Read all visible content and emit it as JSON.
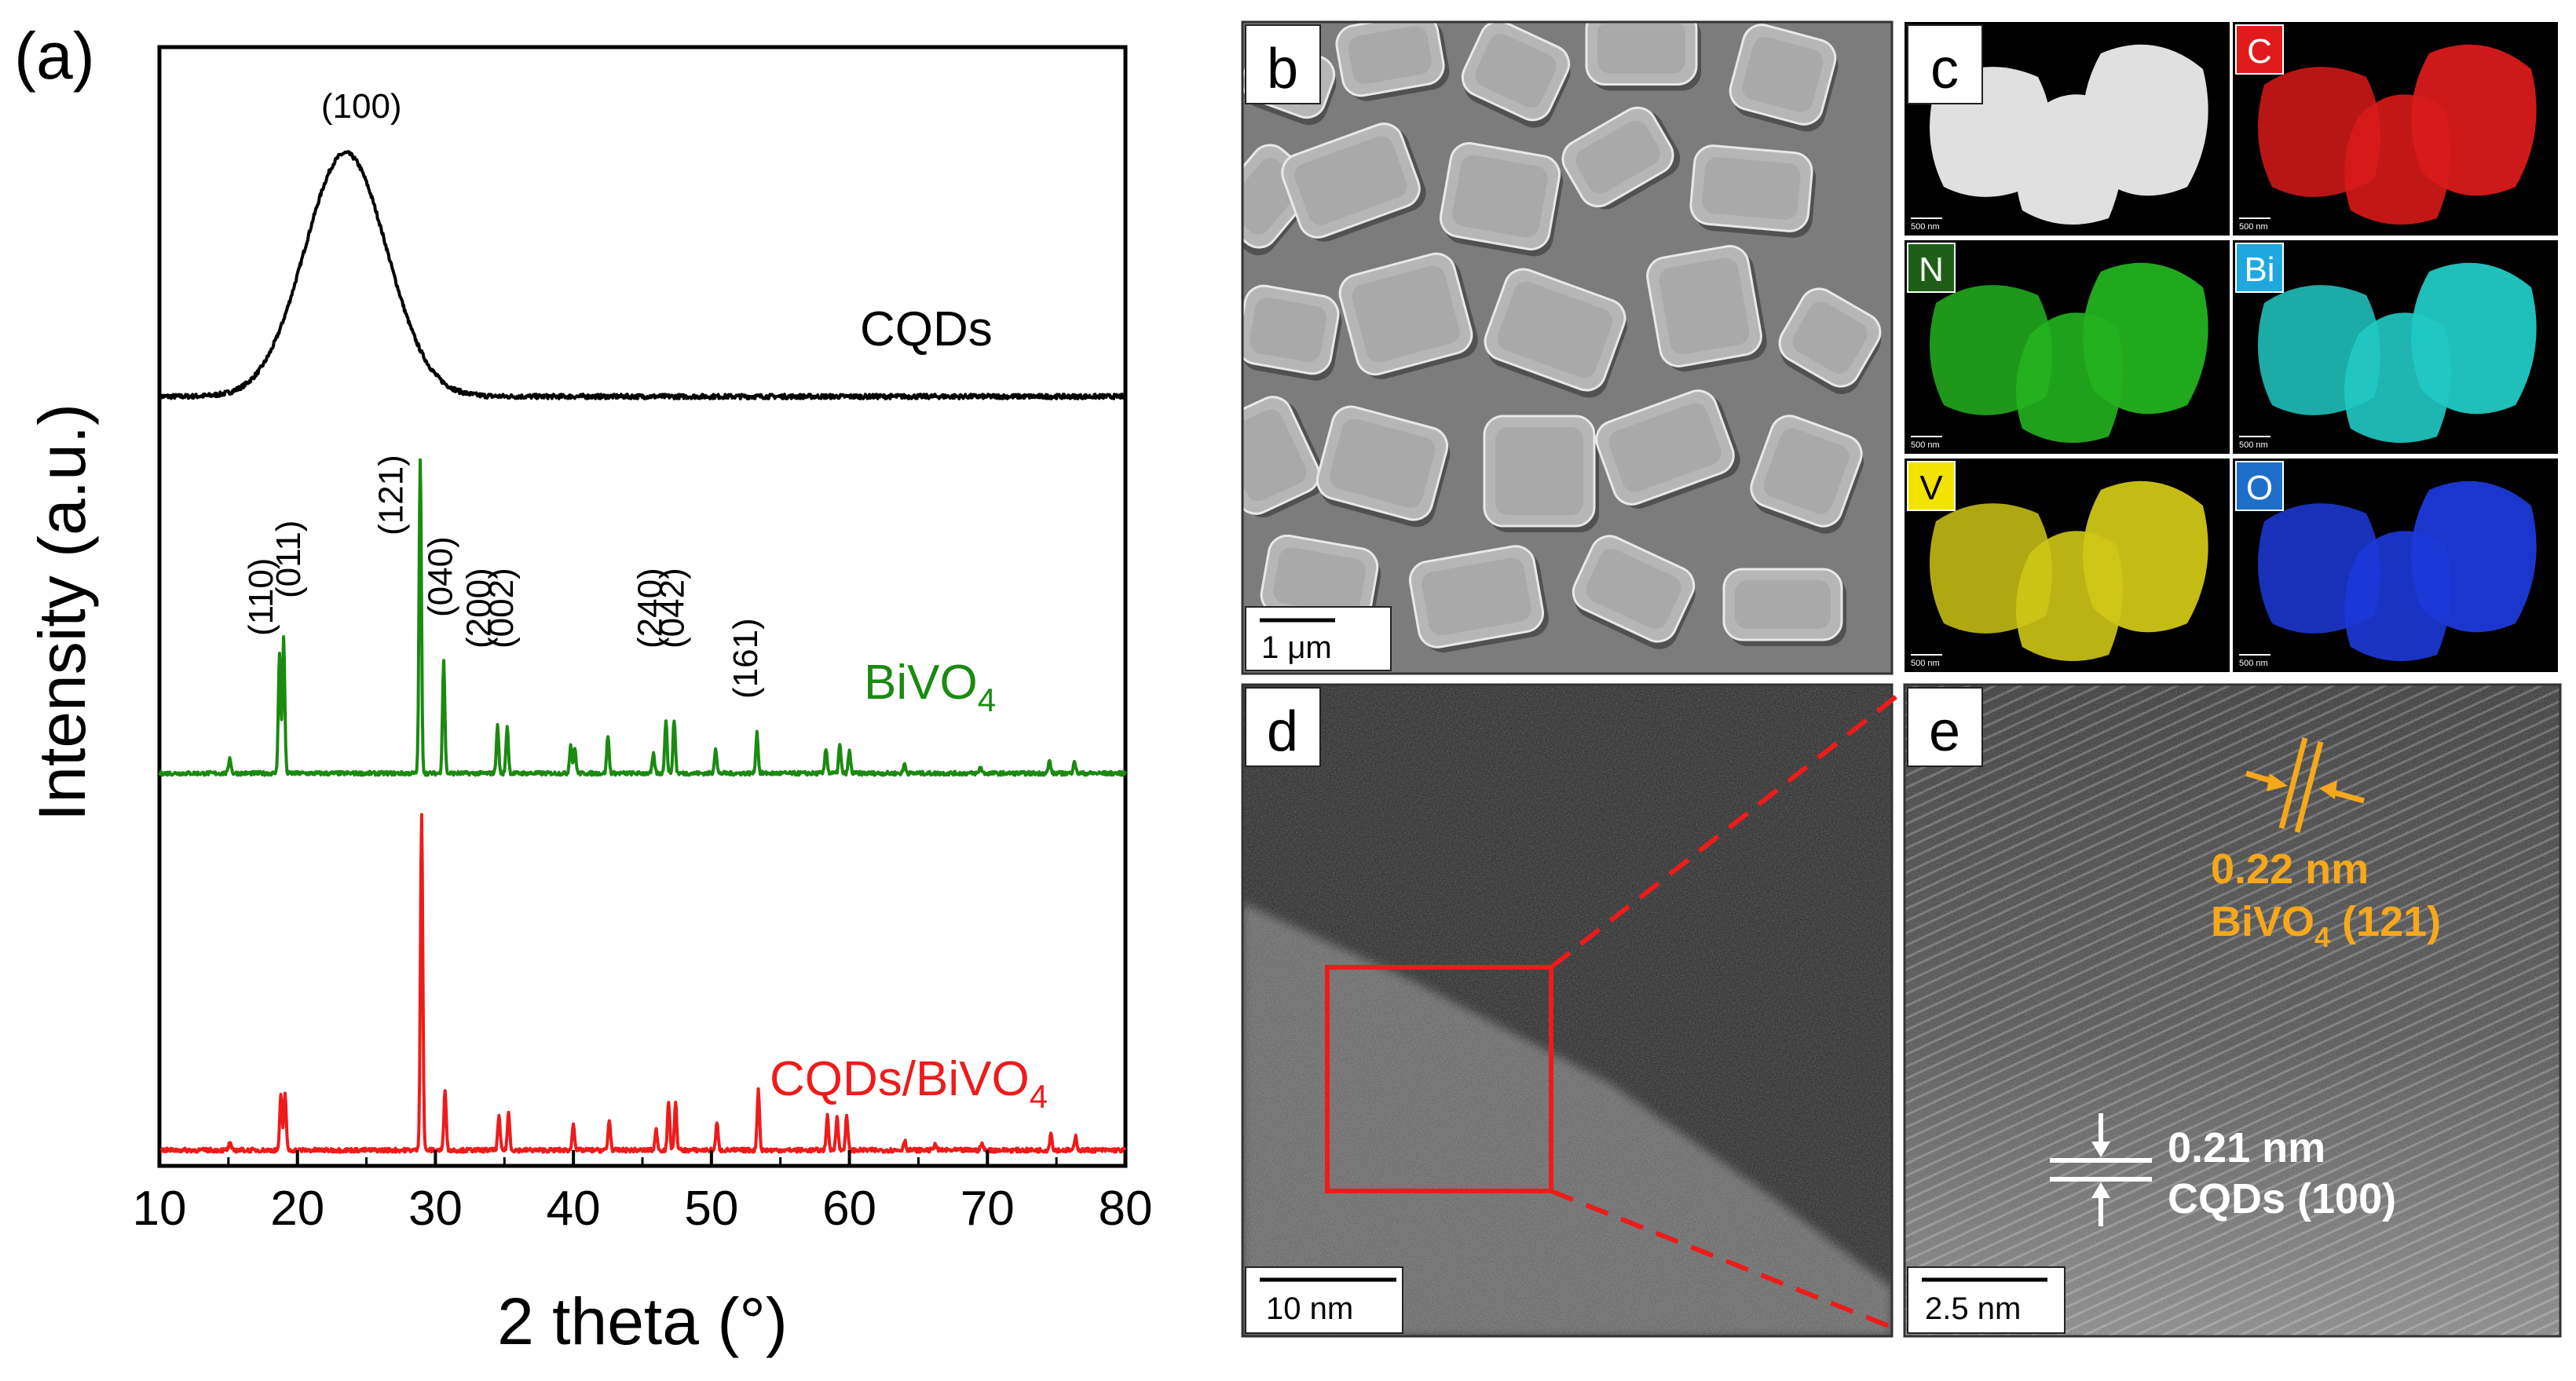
{
  "figure": {
    "panel_a_label": "(a)",
    "panel_b_label": "b",
    "panel_c_label": "c",
    "panel_d_label": "d",
    "panel_e_label": "e"
  },
  "chart_data": {
    "type": "line",
    "title": "",
    "xlabel": "2 theta (°)",
    "ylabel": "Intensity (a.u.)",
    "xlim": [
      10,
      80
    ],
    "xticks": [
      10,
      20,
      30,
      40,
      50,
      60,
      70,
      80
    ],
    "series": [
      {
        "name": "CQDs",
        "color": "#000000",
        "label_main": "CQDs",
        "label_sub": "",
        "kind": "broad",
        "peaks": [
          {
            "x": 23.5,
            "h": 1.0,
            "w": 4.2
          }
        ],
        "annotations": [
          {
            "text": "(100)",
            "x": 23.5
          }
        ]
      },
      {
        "name": "BiVO4",
        "color": "#1a8a10",
        "label_main": "BiVO",
        "label_sub": "4",
        "kind": "sharp",
        "peaks": [
          {
            "x": 15.1,
            "h": 0.05
          },
          {
            "x": 18.7,
            "h": 0.38
          },
          {
            "x": 19.0,
            "h": 0.43
          },
          {
            "x": 28.9,
            "h": 1.0
          },
          {
            "x": 30.6,
            "h": 0.36
          },
          {
            "x": 34.5,
            "h": 0.15
          },
          {
            "x": 35.2,
            "h": 0.15
          },
          {
            "x": 39.8,
            "h": 0.09
          },
          {
            "x": 40.1,
            "h": 0.08
          },
          {
            "x": 42.5,
            "h": 0.12
          },
          {
            "x": 45.8,
            "h": 0.06
          },
          {
            "x": 46.7,
            "h": 0.17
          },
          {
            "x": 47.3,
            "h": 0.17
          },
          {
            "x": 50.3,
            "h": 0.08
          },
          {
            "x": 53.3,
            "h": 0.13
          },
          {
            "x": 58.3,
            "h": 0.08
          },
          {
            "x": 59.3,
            "h": 0.09
          },
          {
            "x": 60.0,
            "h": 0.07
          },
          {
            "x": 64.0,
            "h": 0.03
          },
          {
            "x": 69.5,
            "h": 0.02
          },
          {
            "x": 74.5,
            "h": 0.04
          },
          {
            "x": 76.3,
            "h": 0.04
          }
        ],
        "annotations": [
          {
            "text": "(110)",
            "x": 18.2,
            "yoff": 0.4
          },
          {
            "text": "(011)",
            "x": 20.2,
            "yoff": 0.52
          },
          {
            "text": "(121)",
            "x": 27.6,
            "yoff": 0.72
          },
          {
            "text": "(040)",
            "x": 31.2,
            "yoff": 0.46
          },
          {
            "text": "(200)",
            "x": 34.0,
            "yoff": 0.36
          },
          {
            "text": "(002)",
            "x": 35.6,
            "yoff": 0.36
          },
          {
            "text": "(240)",
            "x": 46.4,
            "yoff": 0.36
          },
          {
            "text": "(042)",
            "x": 48.0,
            "yoff": 0.36
          },
          {
            "text": "(161)",
            "x": 53.3,
            "yoff": 0.2
          }
        ]
      },
      {
        "name": "CQDs/BiVO4",
        "color": "#ee1b1b",
        "label_main": "CQDs/BiVO",
        "label_sub": "4",
        "kind": "sharp",
        "peaks": [
          {
            "x": 15.1,
            "h": 0.02
          },
          {
            "x": 18.8,
            "h": 0.16
          },
          {
            "x": 19.1,
            "h": 0.17
          },
          {
            "x": 29.0,
            "h": 1.0
          },
          {
            "x": 30.7,
            "h": 0.18
          },
          {
            "x": 34.6,
            "h": 0.1
          },
          {
            "x": 35.3,
            "h": 0.11
          },
          {
            "x": 40.0,
            "h": 0.08
          },
          {
            "x": 42.6,
            "h": 0.09
          },
          {
            "x": 46.0,
            "h": 0.06
          },
          {
            "x": 46.9,
            "h": 0.14
          },
          {
            "x": 47.4,
            "h": 0.14
          },
          {
            "x": 50.4,
            "h": 0.08
          },
          {
            "x": 53.4,
            "h": 0.18
          },
          {
            "x": 58.4,
            "h": 0.1
          },
          {
            "x": 59.1,
            "h": 0.1
          },
          {
            "x": 59.8,
            "h": 0.1
          },
          {
            "x": 64.0,
            "h": 0.03
          },
          {
            "x": 66.2,
            "h": 0.02
          },
          {
            "x": 69.6,
            "h": 0.02
          },
          {
            "x": 74.6,
            "h": 0.05
          },
          {
            "x": 76.4,
            "h": 0.04
          }
        ],
        "annotations": []
      }
    ]
  },
  "panels": {
    "b": {
      "scale_text": "1 μm"
    },
    "c": {
      "scale_text": "500 nm",
      "elements": [
        {
          "symbol": "",
          "color": "#e0e0e0",
          "badge": "#ffffff"
        },
        {
          "symbol": "C",
          "color": "#d81a1a",
          "badge": "#e11b1b"
        },
        {
          "symbol": "N",
          "color": "#23b21f",
          "badge": "#1e5e16"
        },
        {
          "symbol": "Bi",
          "color": "#22c9c4",
          "badge": "#1fa7e0"
        },
        {
          "symbol": "V",
          "color": "#cfc616",
          "badge": "#f2e400"
        },
        {
          "symbol": "O",
          "color": "#1c39d8",
          "badge": "#1e6fc9"
        }
      ]
    },
    "d": {
      "scale_text": "10 nm"
    },
    "e": {
      "scale_text": "2.5 nm",
      "spacing1_value": "0.22 nm",
      "spacing1_phase_main": "BiVO",
      "spacing1_phase_sub": "4",
      "spacing1_phase_plane": " (121)",
      "spacing2_value": "0.21 nm",
      "spacing2_phase": "CQDs (100)",
      "orange": "#f5a81c"
    }
  }
}
